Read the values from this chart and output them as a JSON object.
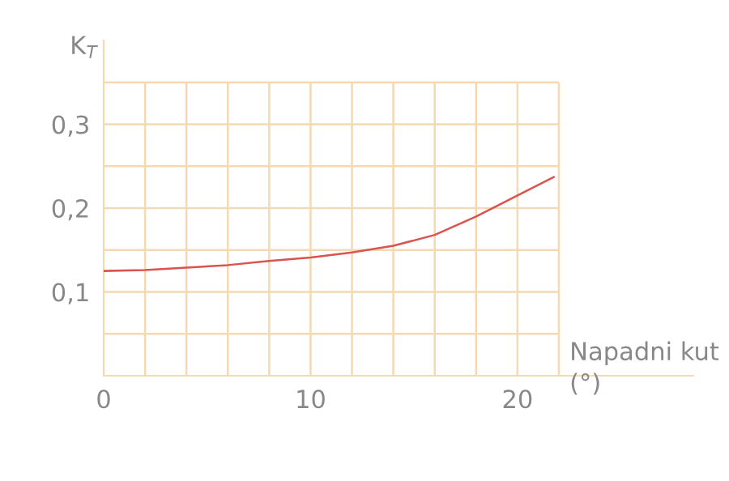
{
  "chart_data": {
    "type": "line",
    "xlabel": "Napadni kut (°)",
    "ylabel": "K$_{T}$",
    "x": [
      0,
      2,
      4,
      6,
      8,
      10,
      12,
      14,
      16,
      18,
      20,
      21.75
    ],
    "series": [
      {
        "color": "#d9534f",
        "values": [
          0.125,
          0.126,
          0.129,
          0.132,
          0.137,
          0.141,
          0.147,
          0.155,
          0.168,
          0.19,
          0.215,
          0.237
        ]
      }
    ],
    "xlim": [
      0,
      28.5
    ],
    "ylim": [
      0,
      0.4
    ],
    "xticks": [
      0,
      {
        "value": 2,
        "label": null
      },
      {
        "value": 4,
        "label": null
      },
      {
        "value": 6,
        "label": null
      },
      {
        "value": 8,
        "label": null
      },
      10,
      {
        "value": 12,
        "label": null
      },
      {
        "value": 14,
        "label": null
      },
      {
        "value": 16,
        "label": null
      },
      {
        "value": 18,
        "label": null
      },
      20,
      {
        "value": 22,
        "label": null
      }
    ],
    "yticks": [
      {
        "value": 0,
        "label": null
      },
      {
        "value": 0.05,
        "label": null
      },
      {
        "value": 0.1,
        "label": "0,1"
      },
      {
        "value": 0.15,
        "label": null
      },
      {
        "value": 0.2,
        "label": "0,2"
      },
      {
        "value": 0.25,
        "label": null
      },
      {
        "value": 0.3,
        "label": "0,3"
      },
      {
        "value": 0.35,
        "label": null
      }
    ],
    "grid": true,
    "line_style": "solid",
    "marker": "none"
  }
}
